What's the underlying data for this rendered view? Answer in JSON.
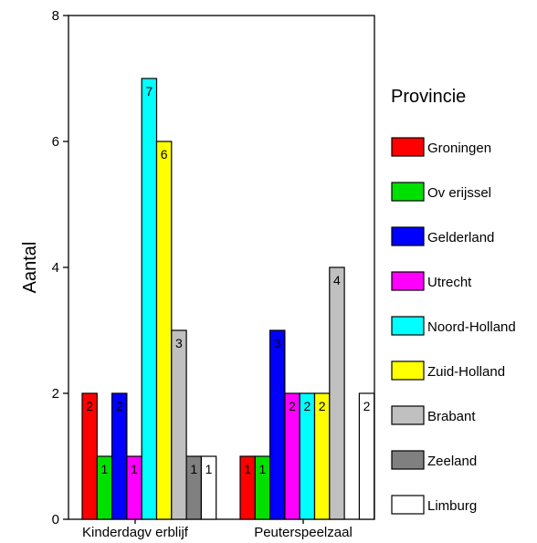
{
  "chart_data": {
    "type": "bar",
    "ylabel": "Aantal",
    "ylim": [
      0,
      8
    ],
    "yticks": [
      0,
      2,
      4,
      6,
      8
    ],
    "categories": [
      "Kinderdagv erblijf",
      "Peuterspeelzaal"
    ],
    "legend_title": "Provincie",
    "legend_position": "right",
    "grid": false,
    "series": [
      {
        "name": "Groningen",
        "color": "#ff0000",
        "values": [
          2,
          1
        ]
      },
      {
        "name": "Ov erijssel",
        "color": "#00e000",
        "values": [
          1,
          1
        ]
      },
      {
        "name": "Gelderland",
        "color": "#0000ff",
        "values": [
          2,
          3
        ]
      },
      {
        "name": "Utrecht",
        "color": "#ff00ff",
        "values": [
          1,
          2
        ]
      },
      {
        "name": "Noord-Holland",
        "color": "#00ffff",
        "values": [
          7,
          2
        ]
      },
      {
        "name": "Zuid-Holland",
        "color": "#ffff00",
        "values": [
          6,
          2
        ]
      },
      {
        "name": "Brabant",
        "color": "#c0c0c0",
        "values": [
          3,
          4
        ]
      },
      {
        "name": "Zeeland",
        "color": "#808080",
        "values": [
          1,
          null
        ]
      },
      {
        "name": "Limburg",
        "color": "#ffffff",
        "values": [
          1,
          2
        ]
      }
    ]
  }
}
